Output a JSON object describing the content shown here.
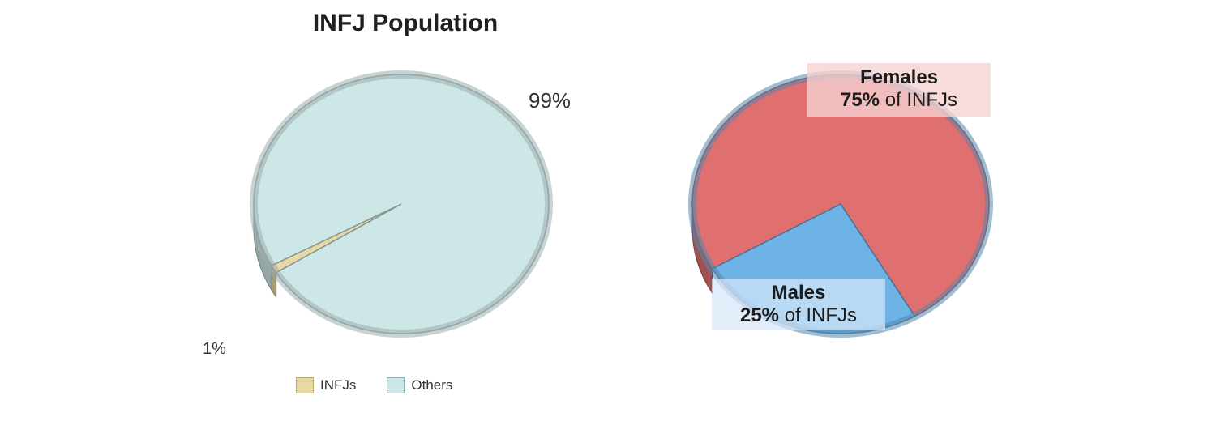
{
  "title": "INFJ Population",
  "chart_data": [
    {
      "type": "pie",
      "title": "INFJ Population",
      "categories": [
        "INFJs",
        "Others"
      ],
      "values": [
        1,
        99
      ],
      "labels": [
        "1%",
        "99%"
      ],
      "colors": [
        "#e8d9a4",
        "#cde6e6"
      ],
      "legend": [
        "INFJs",
        "Others"
      ],
      "legend_position": "bottom"
    },
    {
      "type": "pie",
      "title": "",
      "categories": [
        "Females",
        "Males"
      ],
      "values": [
        75,
        25
      ],
      "colors": [
        "#e06f6f",
        "#6eb3e6"
      ],
      "annotations": [
        {
          "head": "Females",
          "pct": "75%",
          "suffix": "of INFJs"
        },
        {
          "head": "Males",
          "pct": "25%",
          "suffix": "of INFJs"
        }
      ]
    }
  ]
}
